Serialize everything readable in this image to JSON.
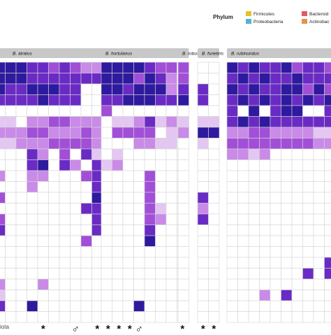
{
  "chart_data": {
    "type": "heatmap",
    "title": "",
    "legend": {
      "title": "Phylum",
      "entries": [
        {
          "name": "Firmicutes",
          "color": "#e8c02a"
        },
        {
          "name": "Proteobacteria",
          "color": "#4fb4cf"
        },
        {
          "name": "Bacteroid",
          "color": "#e05b63"
        },
        {
          "name": "Actinobac",
          "color": "#e8924a"
        }
      ]
    },
    "color_scale": {
      "0": "#ffffff",
      "1": "#e3c7f2",
      "2": "#c98ae8",
      "3": "#a24fd8",
      "4": "#6a2bc5",
      "5": "#2e1a9e"
    },
    "panels": [
      {
        "label": "B. atratus",
        "rows": [
          "5554434322100",
          "5554444444400",
          "5445554400000",
          "4444544400000",
          "0000000000000",
          "1102233222220",
          "2223322232220",
          "1122233332210",
          "0004203041140",
          "0004504204440",
          "2002200034000",
          "0002000004050",
          "3000000005530",
          "0000000044300",
          "3000000004400",
          "4000000004000",
          "0000000030000",
          "0000000000000",
          "0000000000000",
          "0000000000000",
          "2000200000000",
          "1000000000000",
          "4005000000000",
          "0000000000000"
        ],
        "markers": [
          "",
          "",
          "",
          "",
          "*",
          "",
          "",
          "♂",
          "",
          "*",
          "*",
          "*",
          "*"
        ]
      },
      {
        "label": "B. hortulanus",
        "rows": [
          "55554330",
          "55535420",
          "55455520",
          "44555440",
          "30000000",
          "01124121",
          "03333011",
          "00022110",
          "01000000",
          "12000000",
          "00003000",
          "00003000",
          "00003000",
          "00003100",
          "00003200",
          "00004000",
          "00005000",
          "00000000",
          "00000000",
          "00000000",
          "00000000",
          "00000000",
          "00050000",
          "00000000"
        ],
        "markers": [
          "",
          "",
          "",
          "♂",
          "",
          "",
          "",
          "*"
        ]
      },
      {
        "label": "B. robustus",
        "rows": [
          "3",
          "3",
          "4",
          "5",
          "0",
          "1",
          "2",
          "0",
          "0",
          "0",
          "0",
          "0",
          "0",
          "0",
          "0",
          "0",
          "0",
          "0",
          "0",
          "0",
          "0",
          "0",
          "0",
          "0"
        ],
        "markers": [
          ""
        ]
      },
      {
        "label": "B. funebris",
        "rows": [
          "00",
          "00",
          "40",
          "40",
          "00",
          "11",
          "55",
          "10",
          "00",
          "00",
          "00",
          "00",
          "40",
          "20",
          "40",
          "00",
          "00",
          "00",
          "00",
          "00",
          "00",
          "00",
          "00",
          "00"
        ],
        "markers": [
          "*",
          "*"
        ]
      },
      {
        "label": "B. rubinundus",
        "rows": [
          "5454453443",
          "4545445444",
          "5454455353",
          "4545454545",
          "4050455004",
          "4545444444",
          "2233222211",
          "3333333322",
          "2212000000",
          "0000000000",
          "0000000000",
          "0000000000",
          "0000000000",
          "0000000000",
          "0000000000",
          "0000000000",
          "0000000000",
          "0000000000",
          "0000000004",
          "0000000404",
          "0000000000",
          "0002040000",
          "0000000000",
          "0000000000"
        ],
        "markers": [
          "",
          "",
          "",
          "",
          "",
          "",
          "",
          "",
          "",
          ""
        ]
      }
    ],
    "bottom_left_text": "iota"
  }
}
